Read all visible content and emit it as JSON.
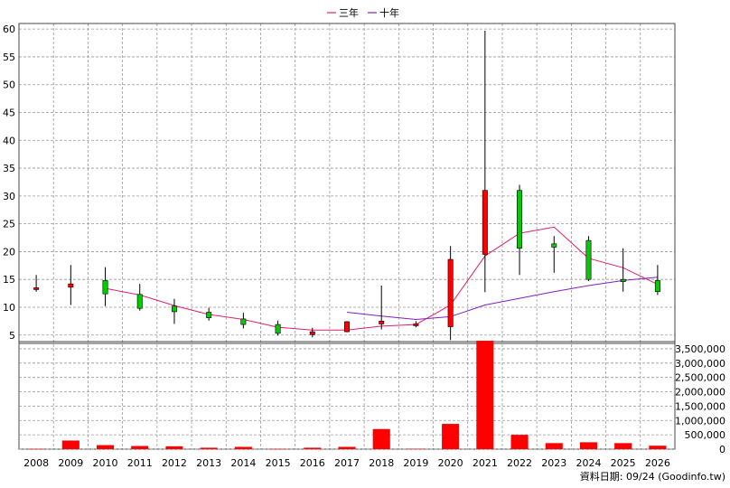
{
  "legend": [
    {
      "name": "三年",
      "color": "#e0206a"
    },
    {
      "name": "十年",
      "color": "#8020c0"
    }
  ],
  "source_note": "資料日期: 09/24  (Goodinfo.tw)",
  "colors": {
    "up": "#ff0000",
    "down": "#00cc00",
    "wick": "#000000",
    "volume": "#ff0000",
    "grid": "#999999"
  },
  "chart_data": [
    {
      "type": "candlestick",
      "title": "",
      "categories": [
        "2008",
        "2009",
        "2010",
        "2011",
        "2012",
        "2013",
        "2014",
        "2015",
        "2016",
        "2017",
        "2018",
        "2019",
        "2020",
        "2021",
        "2022",
        "2023",
        "2024",
        "2025",
        "2026"
      ],
      "ylim": [
        3.5,
        61
      ],
      "yticks": [
        5,
        10,
        15,
        20,
        25,
        30,
        35,
        40,
        45,
        50,
        55,
        60
      ],
      "ohlc": [
        {
          "o": 13.5,
          "h": 15.8,
          "l": 12.8,
          "c": 13.5
        },
        {
          "o": 13.6,
          "h": 17.6,
          "l": 10.4,
          "c": 14.2
        },
        {
          "o": 14.8,
          "h": 17.2,
          "l": 10.2,
          "c": 12.4
        },
        {
          "o": 12.3,
          "h": 14.2,
          "l": 9.4,
          "c": 9.8
        },
        {
          "o": 10.2,
          "h": 11.5,
          "l": 7.0,
          "c": 9.2
        },
        {
          "o": 9.1,
          "h": 9.9,
          "l": 7.6,
          "c": 8.1
        },
        {
          "o": 7.9,
          "h": 9.0,
          "l": 6.2,
          "c": 6.9
        },
        {
          "o": 6.9,
          "h": 7.6,
          "l": 4.9,
          "c": 5.3
        },
        {
          "o": 5.1,
          "h": 6.3,
          "l": 4.6,
          "c": 5.6
        },
        {
          "o": 5.6,
          "h": 7.5,
          "l": 5.5,
          "c": 7.4
        },
        {
          "o": 7.0,
          "h": 13.9,
          "l": 6.0,
          "c": 7.5
        },
        {
          "o": 6.8,
          "h": 7.5,
          "l": 6.4,
          "c": 7.0
        },
        {
          "o": 6.5,
          "h": 21.0,
          "l": 4.1,
          "c": 18.6
        },
        {
          "o": 19.5,
          "h": 59.7,
          "l": 12.7,
          "c": 31.0
        },
        {
          "o": 31.0,
          "h": 32.0,
          "l": 15.8,
          "c": 20.6
        },
        {
          "o": 21.4,
          "h": 22.8,
          "l": 16.2,
          "c": 20.8
        },
        {
          "o": 22.0,
          "h": 22.8,
          "l": 14.7,
          "c": 15.0
        },
        {
          "o": 15.0,
          "h": 20.6,
          "l": 12.8,
          "c": 14.6
        },
        {
          "o": 14.8,
          "h": 17.6,
          "l": 12.2,
          "c": 12.8
        }
      ],
      "series": [
        {
          "name": "三年",
          "values": [
            null,
            null,
            13.4,
            12.2,
            10.3,
            8.7,
            7.8,
            6.4,
            5.9,
            5.9,
            6.6,
            6.9,
            10.4,
            19.2,
            23.3,
            24.4,
            18.8,
            17.1,
            14.1
          ]
        },
        {
          "name": "十年",
          "values": [
            null,
            null,
            null,
            null,
            null,
            null,
            null,
            null,
            null,
            9.1,
            8.4,
            7.8,
            8.3,
            10.4,
            11.6,
            12.8,
            13.9,
            14.8,
            15.4
          ]
        }
      ]
    },
    {
      "type": "bar",
      "title": "",
      "categories": [
        "2008",
        "2009",
        "2010",
        "2011",
        "2012",
        "2013",
        "2014",
        "2015",
        "2016",
        "2017",
        "2018",
        "2019",
        "2020",
        "2021",
        "2022",
        "2023",
        "2024",
        "2025",
        "2026"
      ],
      "values": [
        8000,
        300000,
        140000,
        110000,
        100000,
        50000,
        80000,
        8000,
        50000,
        80000,
        700000,
        15000,
        880000,
        3780000,
        500000,
        210000,
        240000,
        210000,
        120000
      ],
      "ylim": [
        0,
        3750000
      ],
      "yticks": [
        0,
        500000,
        1000000,
        1500000,
        2000000,
        2500000,
        3000000,
        3500000
      ],
      "ytick_labels": [
        "0",
        "500,000",
        "1,000,000",
        "1,500,000",
        "2,000,000",
        "2,500,000",
        "3,000,000",
        "3,500,000"
      ]
    }
  ]
}
